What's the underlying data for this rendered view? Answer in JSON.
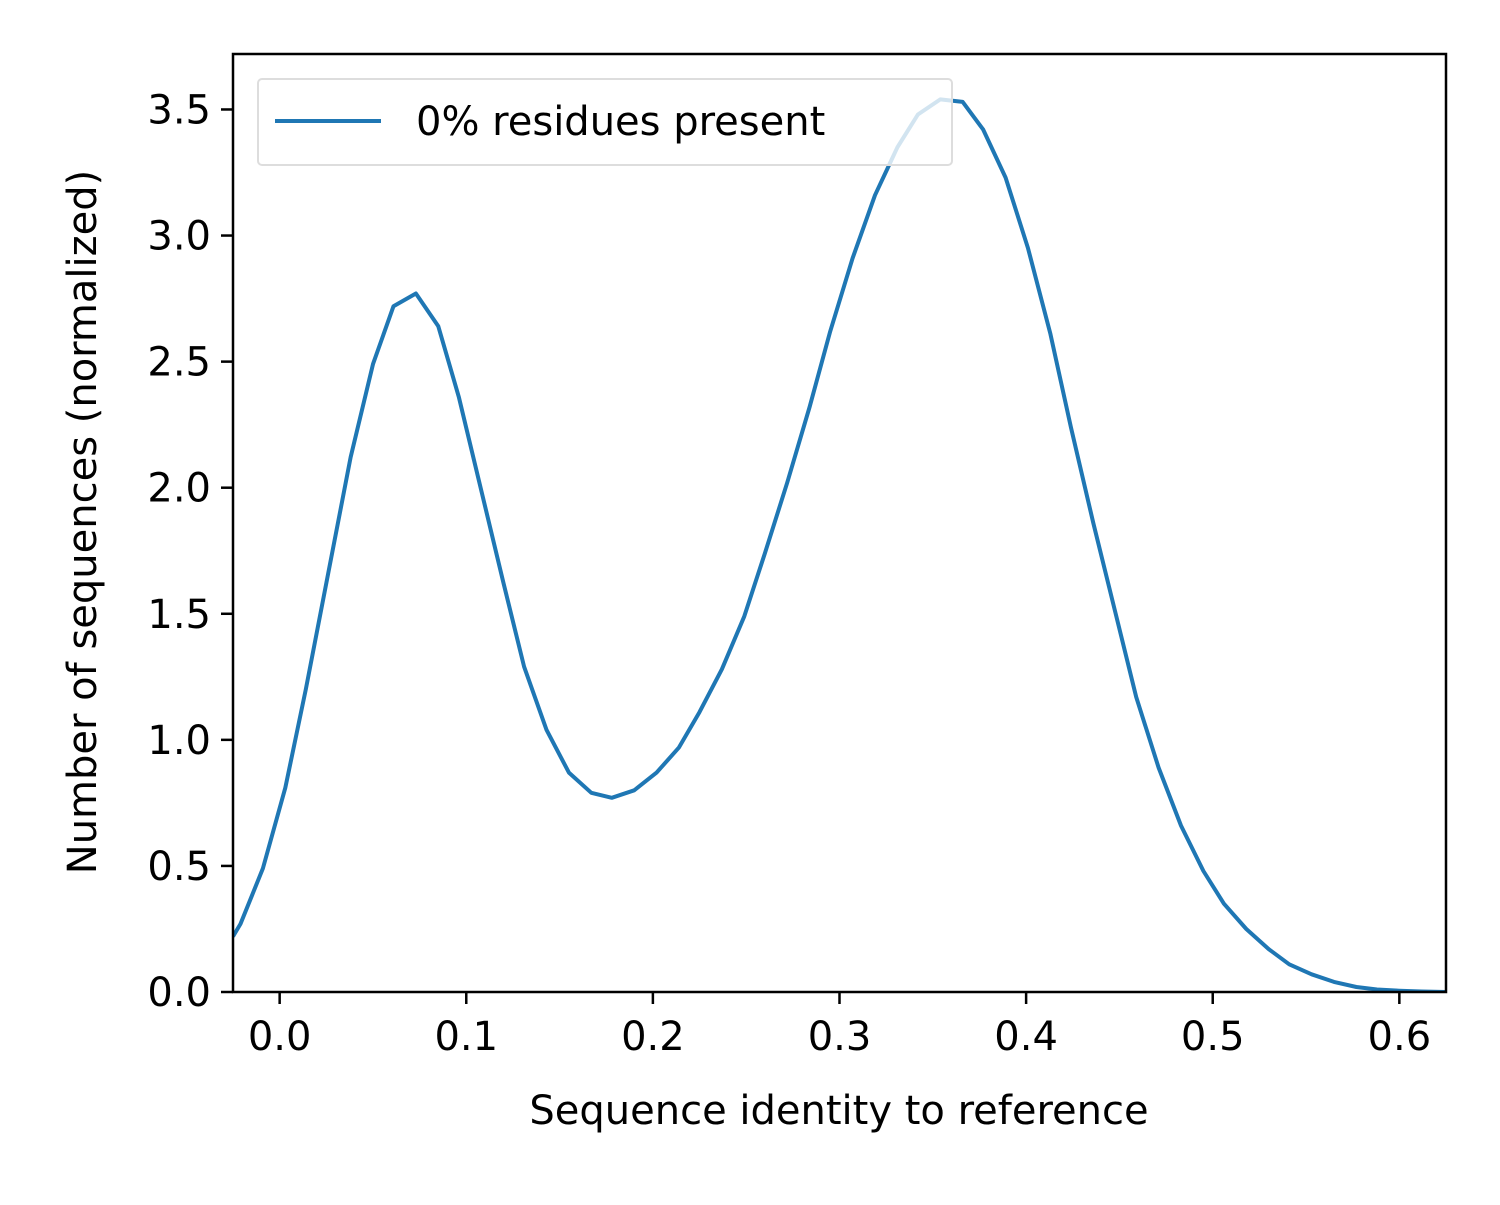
{
  "chart_data": {
    "type": "line",
    "title": "",
    "xlabel": "Sequence identity to reference",
    "ylabel": "Number of sequences (normalized)",
    "xlim": [
      -0.025,
      0.625
    ],
    "ylim": [
      0.0,
      3.72
    ],
    "xticks": [
      {
        "value": 0.0,
        "label": "0.0"
      },
      {
        "value": 0.1,
        "label": "0.1"
      },
      {
        "value": 0.2,
        "label": "0.2"
      },
      {
        "value": 0.3,
        "label": "0.3"
      },
      {
        "value": 0.4,
        "label": "0.4"
      },
      {
        "value": 0.5,
        "label": "0.5"
      },
      {
        "value": 0.6,
        "label": "0.6"
      }
    ],
    "yticks": [
      {
        "value": 0.0,
        "label": "0.0"
      },
      {
        "value": 0.5,
        "label": "0.5"
      },
      {
        "value": 1.0,
        "label": "1.0"
      },
      {
        "value": 1.5,
        "label": "1.5"
      },
      {
        "value": 2.0,
        "label": "2.0"
      },
      {
        "value": 2.5,
        "label": "2.5"
      },
      {
        "value": 3.0,
        "label": "3.0"
      },
      {
        "value": 3.5,
        "label": "3.5"
      }
    ],
    "grid": false,
    "legend_position": "upper-left",
    "series": [
      {
        "name": "0% residues present",
        "color": "#1f77b4",
        "x": [
          -0.025,
          -0.021,
          -0.009,
          0.003,
          0.014,
          0.026,
          0.038,
          0.05,
          0.061,
          0.073,
          0.085,
          0.096,
          0.108,
          0.12,
          0.131,
          0.143,
          0.155,
          0.167,
          0.178,
          0.19,
          0.202,
          0.214,
          0.225,
          0.237,
          0.249,
          0.26,
          0.272,
          0.284,
          0.295,
          0.307,
          0.319,
          0.331,
          0.342,
          0.354,
          0.366,
          0.377,
          0.389,
          0.401,
          0.413,
          0.424,
          0.436,
          0.448,
          0.459,
          0.471,
          0.483,
          0.495,
          0.506,
          0.518,
          0.53,
          0.541,
          0.553,
          0.565,
          0.577,
          0.588,
          0.6,
          0.612,
          0.625
        ],
        "y": [
          0.22,
          0.27,
          0.49,
          0.81,
          1.2,
          1.66,
          2.12,
          2.49,
          2.72,
          2.77,
          2.64,
          2.36,
          1.99,
          1.62,
          1.29,
          1.04,
          0.87,
          0.79,
          0.77,
          0.8,
          0.87,
          0.97,
          1.11,
          1.28,
          1.49,
          1.74,
          2.02,
          2.32,
          2.62,
          2.91,
          3.16,
          3.35,
          3.48,
          3.54,
          3.53,
          3.42,
          3.23,
          2.95,
          2.61,
          2.24,
          1.86,
          1.5,
          1.17,
          0.89,
          0.66,
          0.48,
          0.35,
          0.25,
          0.17,
          0.11,
          0.07,
          0.04,
          0.02,
          0.01,
          0.005,
          0.002,
          0.0
        ]
      }
    ]
  }
}
